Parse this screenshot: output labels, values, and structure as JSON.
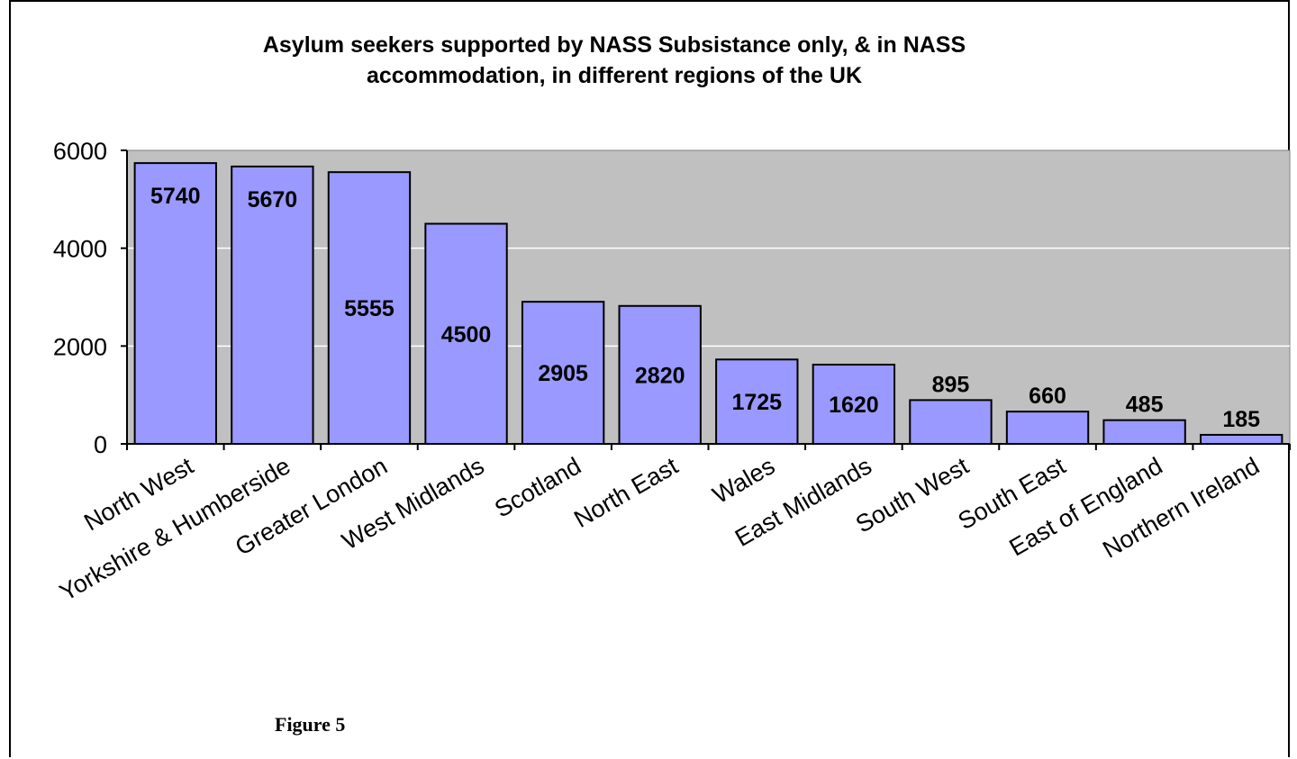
{
  "figure_caption": "Figure 5",
  "colors": {
    "plot_background": "#c0c0c0",
    "bar_fill": "#9999ff",
    "bar_stroke": "#000000",
    "gridline": "#ffffff"
  },
  "chart_data": {
    "type": "bar",
    "title": "Asylum seekers supported by NASS Subsistance  only, & in NASS accommodation, in different regions of the UK",
    "title_lines": [
      "Asylum seekers supported by NASS Subsistance  only, & in NASS",
      "accommodation, in different regions of the UK"
    ],
    "xlabel": "",
    "ylabel": "",
    "categories": [
      "North West",
      "Yorkshire & Humberside",
      "Greater London",
      "West Midlands",
      "Scotland",
      "North East",
      "Wales",
      "East Midlands",
      "South West",
      "South East",
      "East of England",
      "Northern Ireland"
    ],
    "values": [
      5740,
      5670,
      5555,
      4500,
      2905,
      2820,
      1725,
      1620,
      895,
      660,
      485,
      185
    ],
    "data_labels": [
      "5740",
      "5670",
      "5555",
      "4500",
      "2905",
      "2820",
      "1725",
      "1620",
      "895",
      "660",
      "485",
      "185"
    ],
    "ylim": [
      0,
      6000
    ],
    "yticks": [
      0,
      2000,
      4000,
      6000
    ],
    "ytick_labels": [
      "0",
      "2000",
      "4000",
      "6000"
    ],
    "grid": true,
    "legend": "none"
  }
}
